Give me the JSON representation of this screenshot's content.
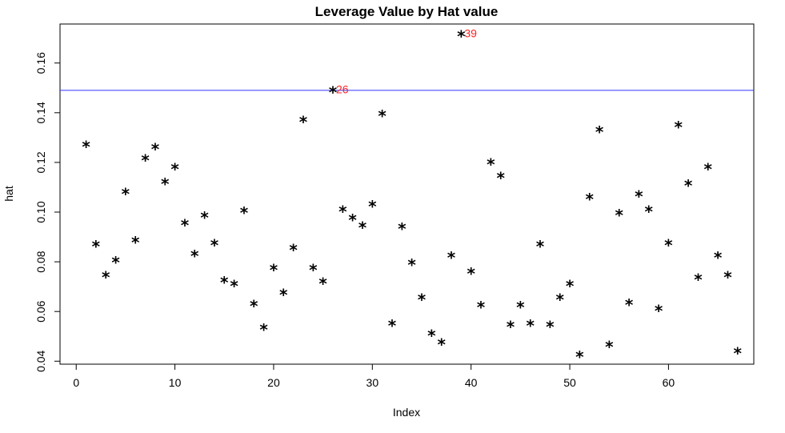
{
  "chart_data": {
    "type": "scatter",
    "title": "Leverage Value by Hat value",
    "xlabel": "Index",
    "ylabel": "hat",
    "xlim": [
      -1.64,
      68.64
    ],
    "ylim": [
      0.0388,
      0.1757
    ],
    "x_ticks": [
      0,
      10,
      20,
      30,
      40,
      50,
      60
    ],
    "y_ticks": [
      0.04,
      0.06,
      0.08,
      0.1,
      0.12,
      0.14,
      0.16
    ],
    "x_tick_labels": [
      "0",
      "10",
      "20",
      "30",
      "40",
      "50",
      "60"
    ],
    "y_tick_labels": [
      "0.04",
      "0.06",
      "0.08",
      "0.10",
      "0.12",
      "0.14",
      "0.16"
    ],
    "marker": "*",
    "marker_color": "#000000",
    "grid": false,
    "x": [
      1,
      2,
      3,
      4,
      5,
      6,
      7,
      8,
      9,
      10,
      11,
      12,
      13,
      14,
      15,
      16,
      17,
      18,
      19,
      20,
      21,
      22,
      23,
      24,
      25,
      26,
      27,
      28,
      29,
      30,
      31,
      32,
      33,
      34,
      35,
      36,
      37,
      38,
      39,
      40,
      41,
      42,
      43,
      44,
      45,
      46,
      47,
      48,
      49,
      50,
      51,
      52,
      53,
      54,
      55,
      56,
      57,
      58,
      59,
      60,
      61,
      62,
      63,
      64,
      65,
      66,
      67
    ],
    "y": [
      0.1275,
      0.0875,
      0.075,
      0.081,
      0.1085,
      0.089,
      0.122,
      0.1265,
      0.1125,
      0.1185,
      0.096,
      0.0835,
      0.099,
      0.088,
      0.073,
      0.0715,
      0.101,
      0.0635,
      0.054,
      0.078,
      0.068,
      0.086,
      0.1375,
      0.078,
      0.0725,
      0.1495,
      0.1015,
      0.098,
      0.095,
      0.1035,
      0.14,
      0.0555,
      0.0945,
      0.08,
      0.066,
      0.0515,
      0.048,
      0.083,
      0.172,
      0.0765,
      0.063,
      0.1205,
      0.115,
      0.055,
      0.063,
      0.0555,
      0.0875,
      0.055,
      0.066,
      0.0715,
      0.043,
      0.1065,
      0.1335,
      0.047,
      0.1,
      0.064,
      0.1075,
      0.1015,
      0.0615,
      0.088,
      0.1355,
      0.112,
      0.074,
      0.1185,
      0.083,
      0.075,
      0.0445
    ],
    "hline": {
      "y": 0.149,
      "color": "#3333ff"
    },
    "annotations": [
      {
        "x": 26,
        "y": 0.1495,
        "text": "26",
        "color": "#ff2020"
      },
      {
        "x": 39,
        "y": 0.172,
        "text": "39",
        "color": "#ff2020"
      }
    ]
  }
}
